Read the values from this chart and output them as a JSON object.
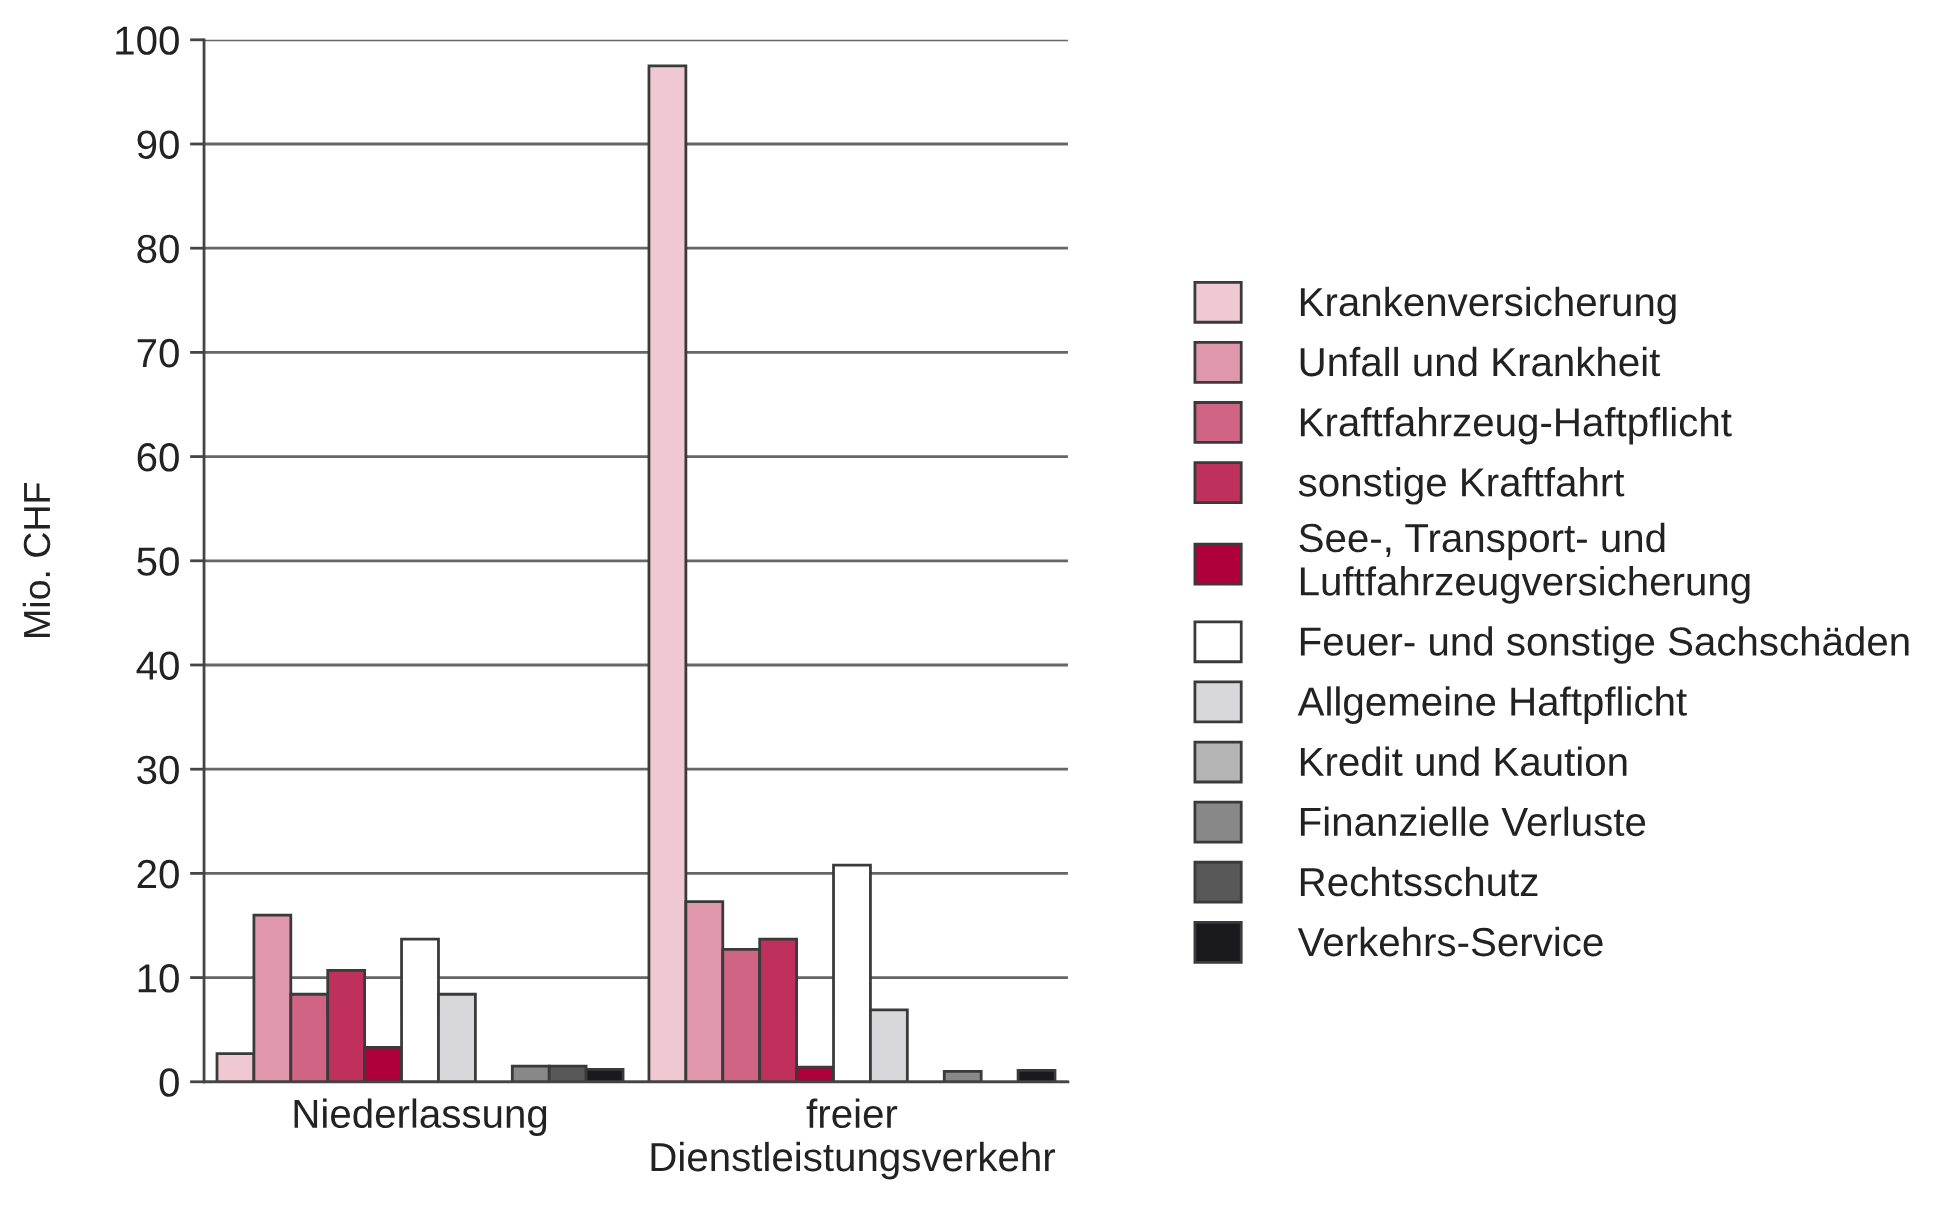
{
  "chart_data": {
    "type": "bar",
    "ylabel": "Mio. CHF",
    "categories": [
      "Niederlassung",
      "freier\nDienstleistungsverkehr"
    ],
    "series": [
      {
        "name": "Krankenversicherung",
        "color": "#f0c8d4",
        "values": [
          2.7,
          97.5
        ]
      },
      {
        "name": "Unfall und Krankheit",
        "color": "#e096ac",
        "values": [
          16.0,
          17.3
        ]
      },
      {
        "name": "Kraftfahrzeug-Haftpflicht",
        "color": "#d06484",
        "values": [
          8.4,
          12.7
        ]
      },
      {
        "name": "sonstige Kraftfahrt",
        "color": "#c0305c",
        "values": [
          10.7,
          13.7
        ]
      },
      {
        "name": "See-, Transport- und\nLuftfahrzeugversicherung",
        "color": "#b0003c",
        "values": [
          3.3,
          1.4
        ]
      },
      {
        "name": "Feuer- und sonstige Sachschäden",
        "color": "#ffffff",
        "values": [
          13.7,
          20.8
        ]
      },
      {
        "name": "Allgemeine Haftpflicht",
        "color": "#d8d8da",
        "values": [
          8.4,
          6.9
        ]
      },
      {
        "name": "Kredit und Kaution",
        "color": "#b4b4b4",
        "values": [
          null,
          null
        ]
      },
      {
        "name": "Finanzielle Verluste",
        "color": "#888888",
        "values": [
          1.5,
          1.0
        ]
      },
      {
        "name": "Rechtsschutz",
        "color": "#585858",
        "values": [
          1.5,
          null
        ]
      },
      {
        "name": "Verkehrs-Service",
        "color": "#1a1a1e",
        "values": [
          1.2,
          1.1
        ]
      }
    ],
    "ylim": [
      0,
      100
    ],
    "yticks": [
      0,
      10,
      20,
      30,
      40,
      50,
      60,
      70,
      80,
      90,
      100
    ],
    "grid": "y",
    "legend": "right"
  }
}
